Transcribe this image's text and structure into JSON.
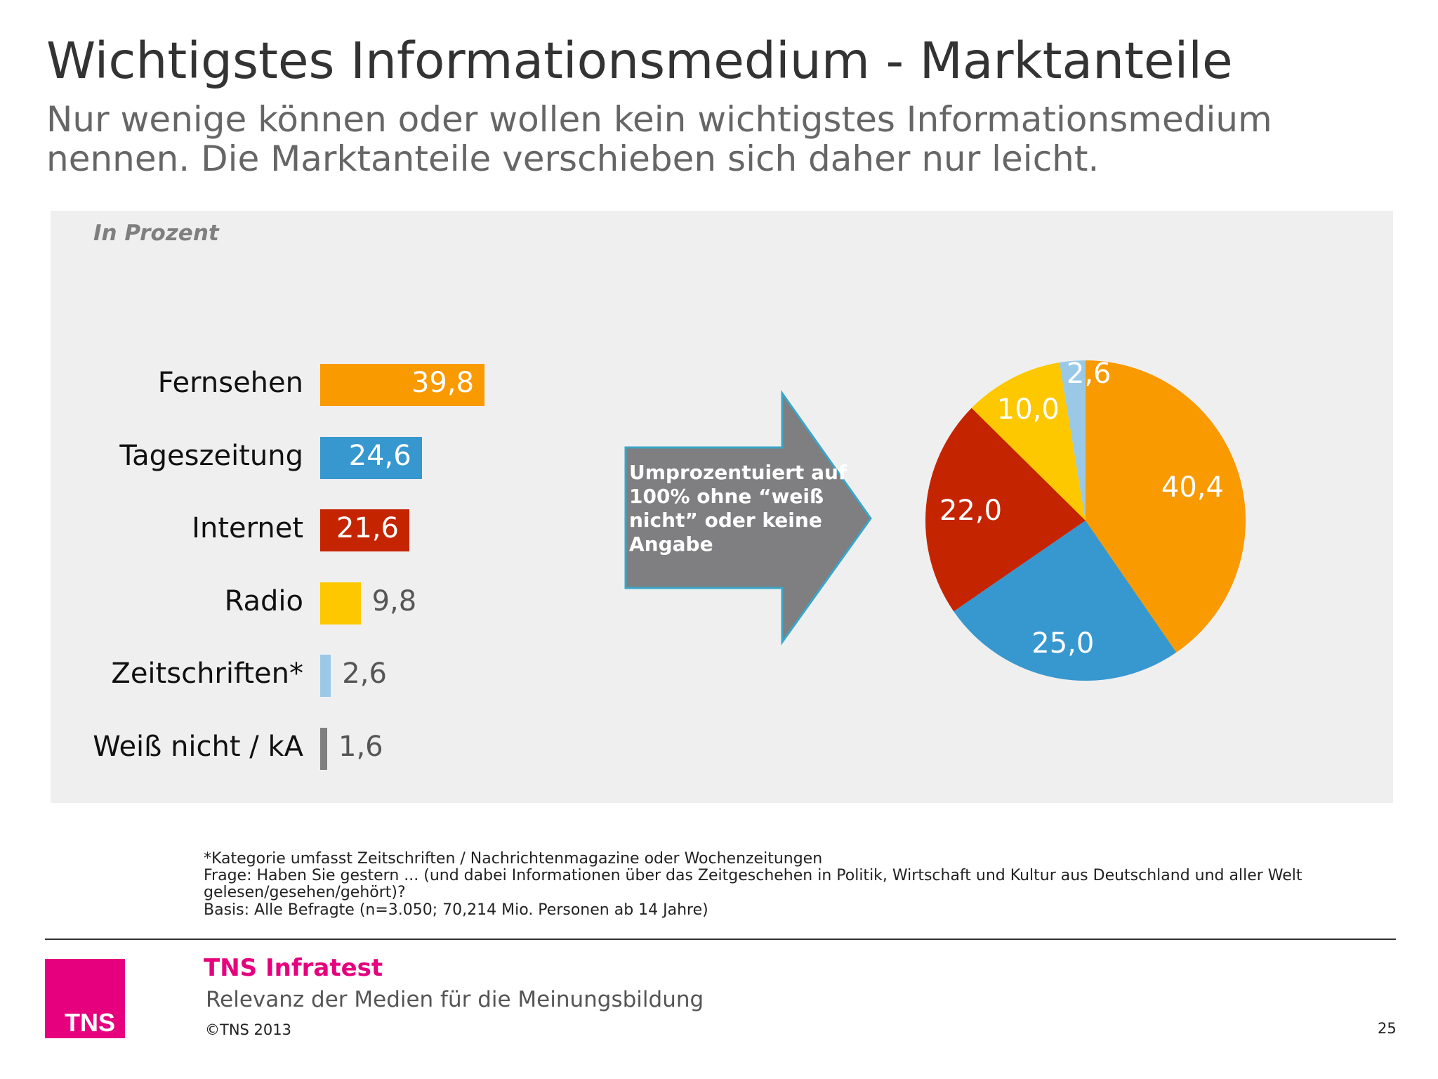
{
  "header": {
    "title": "Wichtigstes Informationsmedium - Marktanteile",
    "subtitle": "Nur wenige können oder wollen kein wichtigstes Informationsmedium nennen. Die Marktanteile verschieben sich daher nur leicht."
  },
  "chart_data": [
    {
      "type": "bar",
      "orientation": "horizontal",
      "unit_label": "In Prozent",
      "categories": [
        "Fernsehen",
        "Tageszeitung",
        "Internet",
        "Radio",
        "Zeitschriften*",
        "Weiß nicht / kA"
      ],
      "values": [
        39.8,
        24.6,
        21.6,
        9.8,
        2.6,
        1.6
      ],
      "value_labels": [
        "39,8",
        "24,6",
        "21,6",
        "9,8",
        "2,6",
        "1,6"
      ],
      "colors": [
        "#f99a00",
        "#3797cf",
        "#c42400",
        "#fdc800",
        "#9ac9e8",
        "#7f7f7f"
      ]
    },
    {
      "type": "pie",
      "categories": [
        "Fernsehen",
        "Tageszeitung",
        "Internet",
        "Radio",
        "Zeitschriften*"
      ],
      "values": [
        40.4,
        25.0,
        22.0,
        10.0,
        2.6
      ],
      "value_labels": [
        "40,4",
        "25,0",
        "22,0",
        "10,0",
        "2,6"
      ],
      "colors": [
        "#f99a00",
        "#3797cf",
        "#c42400",
        "#fdc800",
        "#9ac9e8"
      ]
    }
  ],
  "arrow": {
    "text": "Umprozentuiert auf 100% ohne “weiß nicht” oder keine Angabe",
    "color": "#7f7e80"
  },
  "notes": {
    "footnote": "*Kategorie umfasst Zeitschriften / Nachrichtenmagazine oder Wochenzeitungen",
    "question": "Frage: Haben Sie gestern ... (und dabei Informationen über das Zeitgeschehen in Politik, Wirtschaft und Kultur aus Deutschland und aller Welt gelesen/gesehen/gehört)?",
    "basis": "Basis: Alle Befragte (n=3.050; 70,214 Mio. Personen ab 14 Jahre)"
  },
  "footer": {
    "logo_text": "TNS",
    "brand": "TNS Infratest",
    "report": "Relevanz der Medien für die Meinungsbildung",
    "copyright": "©TNS 2013",
    "page": "25"
  }
}
